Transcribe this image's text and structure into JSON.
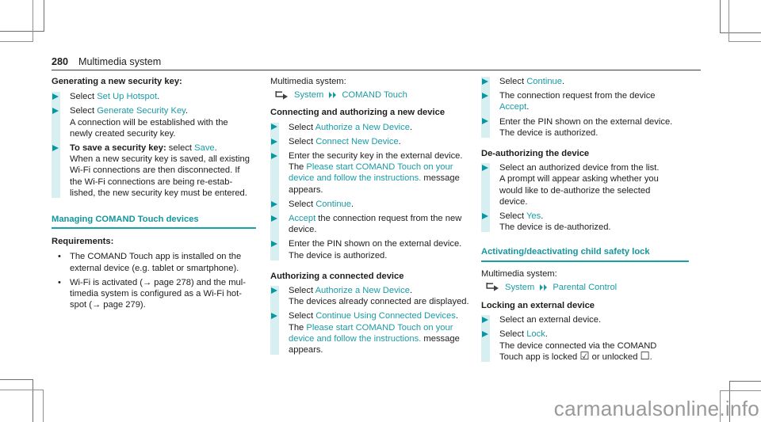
{
  "page": {
    "number": "280",
    "title": "Multimedia system",
    "watermark": "carmanualsonline.info"
  },
  "colors": {
    "accent_teal": "#1a9ba4",
    "heading_teal": "#14969e",
    "step_stripe": "#d8eff1",
    "body_text": "#1d1d1d",
    "watermark_gray": "#98999b"
  },
  "col1": {
    "heading_generating": "Generating a new security key:",
    "steps": [
      {
        "runs": [
          {
            "t": "Select ",
            "s": ""
          },
          {
            "t": "Set Up Hotspot",
            "s": "link"
          },
          {
            "t": ".",
            "s": ""
          }
        ]
      },
      {
        "runs": [
          {
            "t": "Select ",
            "s": ""
          },
          {
            "t": "Generate Security Key",
            "s": "link"
          },
          {
            "t": ".\nA connection will be established with the\nnewly created security key.",
            "s": ""
          }
        ]
      },
      {
        "runs": [
          {
            "t": "To save a security key:",
            "s": "b"
          },
          {
            "t": " select ",
            "s": ""
          },
          {
            "t": "Save",
            "s": "link"
          },
          {
            "t": ".\nWhen a new security key is saved, all existing\nWi-Fi connections are then disconnected. If\nthe Wi-Fi connections are being re-estab-\nlished, the new security key must be entered.",
            "s": ""
          }
        ]
      }
    ],
    "heading_managing": "Managing COMAND Touch devices",
    "heading_requirements": "Requirements:",
    "bullets": [
      "The COMAND Touch app is installed on the\nexternal device (e.g. tablet or smartphone).",
      "Wi-Fi is activated (→ page 278) and the mul-\ntimedia system is configured as a Wi-Fi hot-\nspot (→ page 279)."
    ]
  },
  "col2": {
    "system_label": "Multimedia system:",
    "path": {
      "item1": "System",
      "item2": "COMAND Touch"
    },
    "heading_connecting": "Connecting and authorizing a new device",
    "steps_connecting": [
      {
        "runs": [
          {
            "t": "Select ",
            "s": ""
          },
          {
            "t": "Authorize a New Device",
            "s": "link"
          },
          {
            "t": ".",
            "s": ""
          }
        ]
      },
      {
        "runs": [
          {
            "t": "Select ",
            "s": ""
          },
          {
            "t": "Connect New Device",
            "s": "link"
          },
          {
            "t": ".",
            "s": ""
          }
        ]
      },
      {
        "runs": [
          {
            "t": "Enter the security key in the external device.\nThe ",
            "s": ""
          },
          {
            "t": "Please start COMAND Touch on your\ndevice and follow the instructions.",
            "s": "link"
          },
          {
            "t": " message\nappears.",
            "s": ""
          }
        ]
      },
      {
        "runs": [
          {
            "t": "Select ",
            "s": ""
          },
          {
            "t": "Continue",
            "s": "link"
          },
          {
            "t": ".",
            "s": ""
          }
        ]
      },
      {
        "runs": [
          {
            "t": "Accept",
            "s": "link"
          },
          {
            "t": " the connection request from the new\ndevice.",
            "s": ""
          }
        ]
      },
      {
        "runs": [
          {
            "t": "Enter the PIN shown on the external device.\nThe device is authorized.",
            "s": ""
          }
        ]
      }
    ],
    "heading_authorizing": "Authorizing a connected device",
    "steps_authorizing": [
      {
        "runs": [
          {
            "t": "Select ",
            "s": ""
          },
          {
            "t": "Authorize a New Device",
            "s": "link"
          },
          {
            "t": ".\nThe devices already connected are displayed.",
            "s": ""
          }
        ]
      },
      {
        "runs": [
          {
            "t": "Select ",
            "s": ""
          },
          {
            "t": "Continue Using Connected Devices",
            "s": "link"
          },
          {
            "t": ".\nThe ",
            "s": ""
          },
          {
            "t": "Please start COMAND Touch on your\ndevice and follow the instructions.",
            "s": "link"
          },
          {
            "t": " message\nappears.",
            "s": ""
          }
        ]
      }
    ]
  },
  "col3": {
    "steps_top": [
      {
        "runs": [
          {
            "t": "Select ",
            "s": ""
          },
          {
            "t": "Continue",
            "s": "link"
          },
          {
            "t": ".",
            "s": ""
          }
        ]
      },
      {
        "runs": [
          {
            "t": "The connection request from the device\n",
            "s": ""
          },
          {
            "t": "Accept",
            "s": "link"
          },
          {
            "t": ".",
            "s": ""
          }
        ]
      },
      {
        "runs": [
          {
            "t": "Enter the PIN shown on the external device.\nThe device is authorized.",
            "s": ""
          }
        ]
      }
    ],
    "heading_deauth": "De-authorizing the device",
    "steps_deauth": [
      {
        "runs": [
          {
            "t": "Select an authorized device from the list.\nA prompt will appear asking whether you\nwould like to de-authorize the selected\ndevice.",
            "s": ""
          }
        ]
      },
      {
        "runs": [
          {
            "t": "Select ",
            "s": ""
          },
          {
            "t": "Yes",
            "s": "link"
          },
          {
            "t": ".\nThe device is de-authorized.",
            "s": ""
          }
        ]
      }
    ],
    "heading_child_lock": "Activating/deactivating child safety lock",
    "system_label": "Multimedia system:",
    "path": {
      "item1": "System",
      "item2": "Parental Control"
    },
    "heading_locking": "Locking an external device",
    "steps_locking": [
      {
        "runs": [
          {
            "t": "Select an external device.",
            "s": ""
          }
        ]
      },
      {
        "runs": [
          {
            "t": "Select ",
            "s": ""
          },
          {
            "t": "Lock",
            "s": "link"
          },
          {
            "t": ".\nThe device connected via the COMAND\nTouch app is locked ",
            "s": ""
          },
          {
            "t": "☑",
            "s": "cbx"
          },
          {
            "t": " or unlocked ",
            "s": ""
          },
          {
            "t": "☐",
            "s": "cbx"
          },
          {
            "t": ".",
            "s": ""
          }
        ]
      }
    ]
  }
}
